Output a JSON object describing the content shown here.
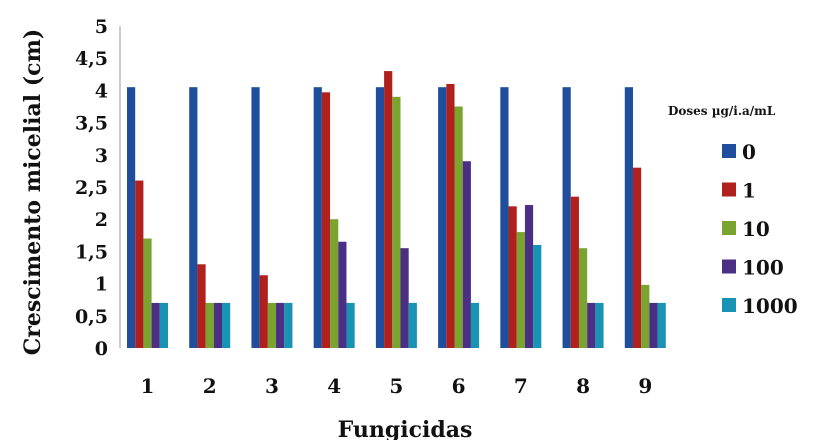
{
  "chart_data": {
    "type": "bar",
    "title": "",
    "xlabel": "Fungicidas",
    "ylabel": "Crescimento micelial (cm)",
    "ylim": [
      0,
      5
    ],
    "yticks": [
      "0",
      "0,5",
      "1",
      "1,5",
      "2",
      "2,5",
      "3",
      "3,5",
      "4",
      "4,5",
      "5"
    ],
    "grid": false,
    "legend": {
      "title": "Doses µg/i.a/mL",
      "position": "right"
    },
    "categories": [
      "1",
      "2",
      "3",
      "4",
      "5",
      "6",
      "7",
      "8",
      "9"
    ],
    "series": [
      {
        "name": "0",
        "color": "#1f4e9c",
        "values": [
          4.05,
          4.05,
          4.05,
          4.05,
          4.05,
          4.05,
          4.05,
          4.05,
          4.05
        ]
      },
      {
        "name": "1",
        "color": "#b0201c",
        "values": [
          2.6,
          1.3,
          1.13,
          3.97,
          4.3,
          4.1,
          2.2,
          2.35,
          2.8
        ]
      },
      {
        "name": "10",
        "color": "#7aa32f",
        "values": [
          1.7,
          0.7,
          0.7,
          2.0,
          3.9,
          3.75,
          1.8,
          1.55,
          0.98
        ]
      },
      {
        "name": "100",
        "color": "#4b2f84",
        "values": [
          0.7,
          0.7,
          0.7,
          1.65,
          1.55,
          2.9,
          2.22,
          0.7,
          0.7
        ]
      },
      {
        "name": "1000",
        "color": "#1993b3",
        "values": [
          0.7,
          0.7,
          0.7,
          0.7,
          0.7,
          0.7,
          1.6,
          0.7,
          0.7
        ]
      }
    ]
  }
}
